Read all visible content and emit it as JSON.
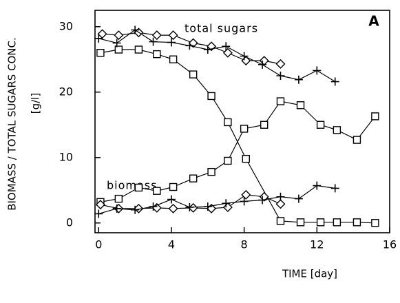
{
  "chart_data": {
    "type": "scatter-line",
    "panel_label": "A",
    "x_label": "TIME [day]",
    "y_label": "BIOMASS / TOTAL SUGARS CONC.",
    "y_unit": "[g/l]",
    "annotations": [
      "total sugars",
      "biomass"
    ],
    "xlim": [
      -0.2,
      16
    ],
    "xticks": [
      0,
      4,
      8,
      12,
      16
    ],
    "ylim": [
      -1.5,
      32.5
    ],
    "yticks": [
      0,
      10,
      20,
      30
    ],
    "series": [
      {
        "marker": "square",
        "color": "#000000",
        "x": [
          0.1,
          1.1,
          2.2,
          3.2,
          4.1,
          5.2,
          6.2,
          7.1,
          8.1,
          10.0,
          11.1,
          12.2,
          13.1,
          14.2,
          15.2
        ],
        "values": [
          26,
          26.5,
          26.5,
          25.8,
          25,
          22.7,
          19.4,
          15.4,
          9.8,
          0.3,
          0.1,
          0.1,
          0.1,
          0.1,
          0
        ]
      },
      {
        "marker": "square",
        "color": "#000000",
        "x": [
          0.1,
          1.1,
          2.2,
          3.2,
          4.1,
          5.2,
          6.2,
          7.1,
          8.0,
          9.1,
          10.0,
          11.1,
          12.2,
          13.1,
          14.2,
          15.2
        ],
        "values": [
          3.2,
          3.7,
          5.4,
          4.9,
          5.5,
          6.8,
          7.8,
          9.5,
          14.4,
          15.0,
          18.6,
          18.0,
          15.0,
          14.2,
          12.7,
          16.3
        ]
      },
      {
        "marker": "diamond",
        "color": "#000000",
        "x": [
          0.2,
          1.1,
          2.2,
          3.2,
          4.1,
          5.2,
          6.2,
          7.1,
          8.1,
          9.1,
          10.0
        ],
        "values": [
          28.9,
          28.7,
          29.1,
          28.7,
          28.7,
          27.5,
          27.0,
          26.0,
          24.8,
          24.8,
          24.3
        ]
      },
      {
        "marker": "plus",
        "color": "#000000",
        "x": [
          0,
          1,
          2,
          3,
          4,
          5,
          6,
          7,
          8,
          9,
          10,
          11,
          12,
          13
        ],
        "values": [
          28.2,
          27.5,
          29.5,
          27.7,
          27.6,
          27.1,
          26.5,
          27.0,
          25.5,
          24.2,
          22.5,
          21.9,
          23.3,
          21.6
        ]
      },
      {
        "marker": "diamond",
        "color": "#000000",
        "x": [
          0.1,
          1.1,
          2.2,
          3.2,
          4.1,
          5.2,
          6.2,
          7.1,
          8.1,
          9.1,
          10.0
        ],
        "values": [
          2.8,
          2.2,
          2.2,
          2.3,
          2.2,
          2.3,
          2.2,
          2.4,
          4.3,
          4.0,
          2.9
        ]
      },
      {
        "marker": "plus",
        "color": "#000000",
        "x": [
          0,
          1,
          2,
          3,
          4,
          5,
          6,
          7,
          8,
          9,
          10,
          11,
          12,
          13
        ],
        "values": [
          1.4,
          2.2,
          2.0,
          2.5,
          3.6,
          2.4,
          2.5,
          3.0,
          3.3,
          3.5,
          4.0,
          3.7,
          5.7,
          5.3
        ]
      }
    ]
  }
}
